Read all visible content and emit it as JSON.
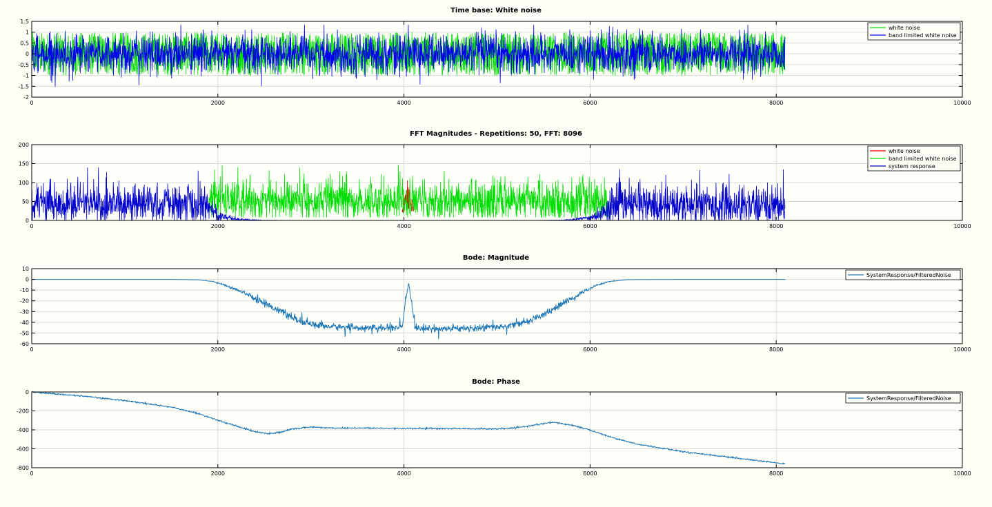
{
  "figure": {
    "background": "#fffff8"
  },
  "chart_data": [
    {
      "type": "line",
      "title": "Time base: White noise",
      "xlim": [
        0,
        10000
      ],
      "ylim": [
        -2,
        1.5
      ],
      "xticks": [
        0,
        2000,
        4000,
        6000,
        8000,
        10000
      ],
      "yticks": [
        1.5,
        1,
        0.5,
        0,
        -0.5,
        -1,
        -1.5,
        -2
      ],
      "grid": true,
      "legend_position": "top-right",
      "series": [
        {
          "name": "white noise",
          "color": "#00dd00",
          "x_range": [
            0,
            8096
          ],
          "shape": "uniform noise, amplitude about ±1"
        },
        {
          "name": "band limited white noise",
          "color": "#0000ee",
          "x_range": [
            0,
            8096
          ],
          "shape": "noise, mostly within ±1, peaks near ±1.5"
        }
      ]
    },
    {
      "type": "line",
      "title": "FFT Magnitudes - Repetitions: 50, FFT: 8096",
      "xlim": [
        0,
        10000
      ],
      "ylim": [
        0,
        200
      ],
      "xticks": [
        0,
        2000,
        4000,
        6000,
        8000,
        10000
      ],
      "yticks": [
        200,
        150,
        100,
        50,
        0
      ],
      "grid": true,
      "legend_position": "top-right",
      "series": [
        {
          "name": "white noise",
          "color": "#ee0000",
          "x_range": [
            3980,
            4110
          ],
          "shape": "narrow burst around x=4050, values about 20-110"
        },
        {
          "name": "band limited white noise",
          "color": "#00dd00",
          "x_range": [
            1900,
            6200
          ],
          "shape": "noise about 10-150, mean near 50"
        },
        {
          "name": "system response",
          "color": "#0000cc",
          "x_range": [
            0,
            8096
          ],
          "shape": "noise about 0-140, mean near 50, rolling off to 0 between x=2000 and x=6000"
        }
      ]
    },
    {
      "type": "line",
      "title": "Bode: Magnitude",
      "xlim": [
        0,
        10000
      ],
      "ylim": [
        -60,
        10
      ],
      "xticks": [
        0,
        2000,
        4000,
        6000,
        8000,
        10000
      ],
      "yticks": [
        10,
        0,
        -10,
        -20,
        -30,
        -40,
        -50,
        -60
      ],
      "grid": true,
      "legend_position": "top-right",
      "series": [
        {
          "name": "SystemResponse/FilteredNoise",
          "color": "#1f77b4",
          "x": [
            0,
            1500,
            1800,
            1950,
            2100,
            2300,
            2500,
            2700,
            2850,
            3000,
            3200,
            3500,
            3800,
            3980,
            4020,
            4050,
            4080,
            4120,
            4200,
            4500,
            4800,
            5100,
            5300,
            5500,
            5700,
            5900,
            6050,
            6200,
            6400,
            7000,
            8096
          ],
          "y": [
            0,
            0,
            -0.5,
            -2,
            -6,
            -13,
            -22,
            -31,
            -38,
            -42,
            -44,
            -45,
            -45.5,
            -45,
            -20,
            -3,
            -20,
            -45,
            -46,
            -46,
            -45.5,
            -44,
            -40,
            -33,
            -23,
            -13,
            -6,
            -2,
            -0.3,
            0,
            0
          ],
          "noise": 1.5
        }
      ]
    },
    {
      "type": "line",
      "title": "Bode: Phase",
      "xlim": [
        0,
        10000
      ],
      "ylim": [
        -800,
        0
      ],
      "xticks": [
        0,
        2000,
        4000,
        6000,
        8000,
        10000
      ],
      "yticks": [
        0,
        -200,
        -400,
        -600,
        -800
      ],
      "grid": true,
      "legend_position": "top-right",
      "series": [
        {
          "name": "SystemResponse/FilteredNoise",
          "color": "#1f77b4",
          "x": [
            0,
            500,
            1000,
            1500,
            1800,
            2000,
            2200,
            2400,
            2550,
            2700,
            2800,
            3000,
            3200,
            3500,
            4000,
            4500,
            5000,
            5200,
            5400,
            5600,
            5800,
            6000,
            6200,
            6500,
            7000,
            7500,
            8096
          ],
          "y": [
            0,
            -40,
            -90,
            -160,
            -230,
            -300,
            -360,
            -420,
            -440,
            -420,
            -390,
            -370,
            -380,
            -380,
            -385,
            -385,
            -390,
            -380,
            -350,
            -320,
            -350,
            -400,
            -470,
            -550,
            -630,
            -690,
            -760
          ],
          "noise": 6
        }
      ]
    }
  ]
}
